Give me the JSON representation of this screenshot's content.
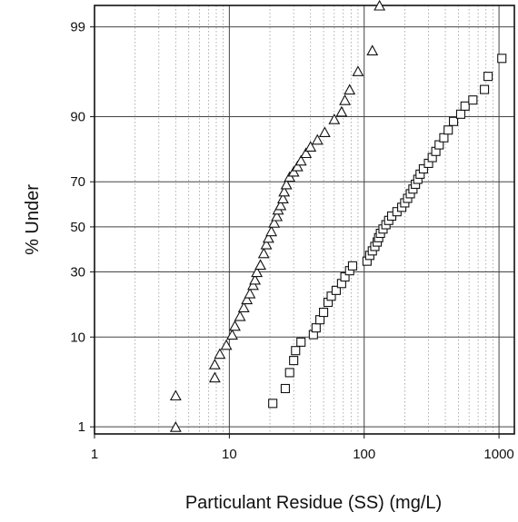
{
  "chart_data": {
    "type": "scatter",
    "title": "",
    "xlabel": "Particulant Residue (SS) (mg/L)",
    "ylabel": "% Under",
    "x_scale": "log",
    "y_scale": "probability",
    "xlim": [
      1,
      1300
    ],
    "ylim": [
      0.8,
      99.5
    ],
    "x_ticks": [
      1,
      10,
      100,
      1000
    ],
    "x_tick_labels": [
      "1",
      "10",
      "100",
      "1000"
    ],
    "y_ticks": [
      1,
      10,
      30,
      50,
      70,
      90,
      99
    ],
    "y_tick_labels": [
      "1",
      "10",
      "30",
      "50",
      "70",
      "90",
      "99"
    ],
    "grid": true,
    "legend": "none",
    "series": [
      {
        "marker": "triangle",
        "color": "#111111",
        "points": [
          [
            4,
            1
          ],
          [
            4,
            2.5
          ],
          [
            7.8,
            4
          ],
          [
            7.8,
            5.5
          ],
          [
            8.5,
            7
          ],
          [
            9.5,
            8.5
          ],
          [
            10.5,
            10.5
          ],
          [
            11,
            12.5
          ],
          [
            12,
            15
          ],
          [
            12.8,
            17.5
          ],
          [
            13.5,
            20
          ],
          [
            14.2,
            22
          ],
          [
            15,
            25
          ],
          [
            15.5,
            27
          ],
          [
            16,
            30
          ],
          [
            17,
            33
          ],
          [
            18,
            38
          ],
          [
            18.8,
            42
          ],
          [
            19.5,
            45
          ],
          [
            20.5,
            48
          ],
          [
            21.5,
            52
          ],
          [
            22.5,
            55
          ],
          [
            23,
            58
          ],
          [
            24,
            60
          ],
          [
            25,
            63
          ],
          [
            25.5,
            66
          ],
          [
            26.5,
            69
          ],
          [
            28,
            72
          ],
          [
            30,
            74
          ],
          [
            32,
            76
          ],
          [
            34,
            78
          ],
          [
            37,
            80.5
          ],
          [
            40,
            82.5
          ],
          [
            45,
            84.5
          ],
          [
            51,
            86.5
          ],
          [
            60,
            89.5
          ],
          [
            68,
            91
          ],
          [
            72,
            93
          ],
          [
            78,
            94.5
          ],
          [
            90,
            96.5
          ],
          [
            115,
            98
          ],
          [
            130,
            99.5
          ]
        ]
      },
      {
        "marker": "square",
        "color": "#111111",
        "points": [
          [
            21,
            2
          ],
          [
            26,
            3
          ],
          [
            28,
            4.5
          ],
          [
            30,
            6
          ],
          [
            31,
            7.5
          ],
          [
            34,
            9
          ],
          [
            42,
            10.5
          ],
          [
            44,
            12
          ],
          [
            47,
            14
          ],
          [
            50,
            16
          ],
          [
            54,
            19
          ],
          [
            57,
            21
          ],
          [
            62,
            23
          ],
          [
            68,
            25.5
          ],
          [
            72,
            28
          ],
          [
            78,
            30.5
          ],
          [
            82,
            32.5
          ],
          [
            105,
            34.5
          ],
          [
            110,
            37
          ],
          [
            115,
            39
          ],
          [
            120,
            41
          ],
          [
            125,
            43
          ],
          [
            128,
            45
          ],
          [
            132,
            47
          ],
          [
            138,
            49
          ],
          [
            145,
            51
          ],
          [
            152,
            53
          ],
          [
            160,
            55
          ],
          [
            175,
            57
          ],
          [
            190,
            59
          ],
          [
            200,
            61
          ],
          [
            210,
            63
          ],
          [
            220,
            65
          ],
          [
            230,
            67
          ],
          [
            240,
            69
          ],
          [
            250,
            71
          ],
          [
            260,
            73
          ],
          [
            275,
            75
          ],
          [
            300,
            77
          ],
          [
            320,
            79
          ],
          [
            340,
            81
          ],
          [
            360,
            83
          ],
          [
            390,
            85
          ],
          [
            420,
            87
          ],
          [
            460,
            89
          ],
          [
            520,
            90.5
          ],
          [
            560,
            92
          ],
          [
            640,
            93
          ],
          [
            780,
            94.5
          ],
          [
            830,
            96
          ],
          [
            1050,
            97.5
          ]
        ]
      }
    ]
  }
}
